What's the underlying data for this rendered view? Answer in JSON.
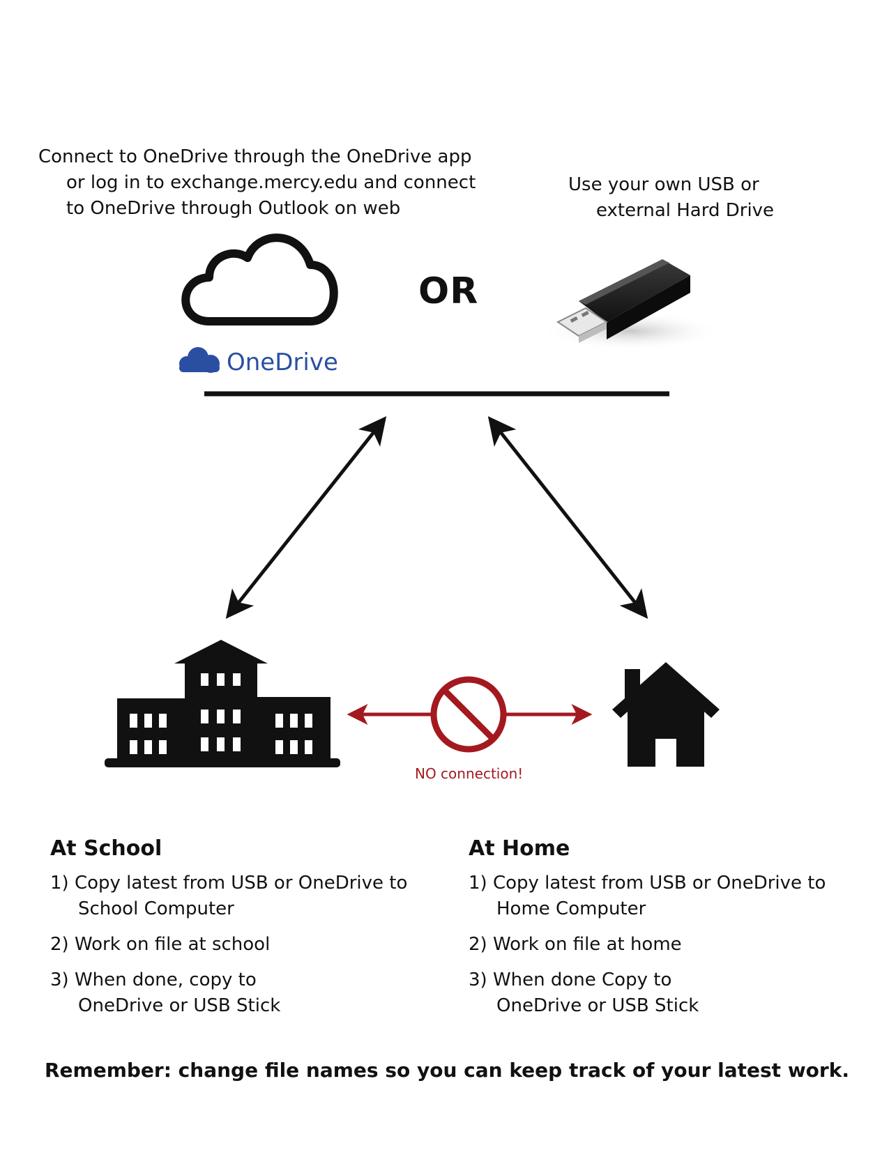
{
  "onedrive_option": {
    "lines": [
      "Connect to OneDrive through the OneDrive app",
      "or log in to exchange.mercy.edu and connect",
      "to OneDrive through Outlook on web"
    ],
    "logo_label": "OneDrive"
  },
  "or_label": "OR",
  "usb_option": {
    "lines": [
      "Use your own USB or",
      "external Hard Drive"
    ]
  },
  "no_connection_label": "NO connection!",
  "school": {
    "heading": "At School",
    "steps": [
      {
        "line1": "1) Copy latest from USB or OneDrive to",
        "line2": "School Computer"
      },
      {
        "line1": "2) Work on file at school",
        "line2": ""
      },
      {
        "line1": "3) When done, copy to",
        "line2": "OneDrive or USB Stick"
      }
    ]
  },
  "home": {
    "heading": "At Home",
    "steps": [
      {
        "line1": "1) Copy latest from USB or OneDrive to",
        "line2": "Home Computer"
      },
      {
        "line1": "2) Work on file at home",
        "line2": ""
      },
      {
        "line1": "3) When done Copy to",
        "line2": "OneDrive or USB Stick"
      }
    ]
  },
  "reminder": "Remember: change file names so you can keep track of your latest work.",
  "colors": {
    "text": "#111111",
    "onedrive_blue": "#2a4fa2",
    "no_connection_red": "#a3191f"
  },
  "icons": [
    "cloud-icon",
    "onedrive-logo-icon",
    "usb-stick-icon",
    "school-building-icon",
    "house-icon",
    "prohibited-icon"
  ]
}
